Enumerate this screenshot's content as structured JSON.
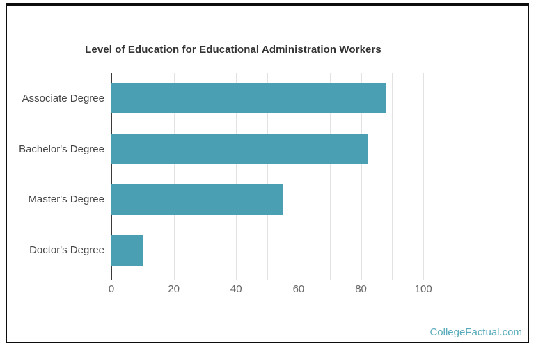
{
  "chart_data": {
    "type": "bar",
    "orientation": "horizontal",
    "title": "Level of Education for Educational Administration Workers",
    "categories": [
      "Associate Degree",
      "Bachelor's Degree",
      "Master's Degree",
      "Doctor's Degree"
    ],
    "values": [
      88,
      82,
      55,
      10
    ],
    "xlabel": "",
    "ylabel": "",
    "xlim": [
      0,
      110
    ],
    "x_tick_label_values": [
      0,
      20,
      40,
      60,
      80,
      100
    ],
    "gridline_step": 10,
    "grid": true,
    "legend": false,
    "bar_color": "#4aa0b2",
    "grid_color": "#e2e2e2",
    "axis_color": "#3a3a3a",
    "title_color": "#333333",
    "category_label_color": "#464646",
    "tick_label_color": "#666666"
  },
  "watermark": {
    "text": "CollegeFactual.com",
    "color": "#57aaba"
  }
}
